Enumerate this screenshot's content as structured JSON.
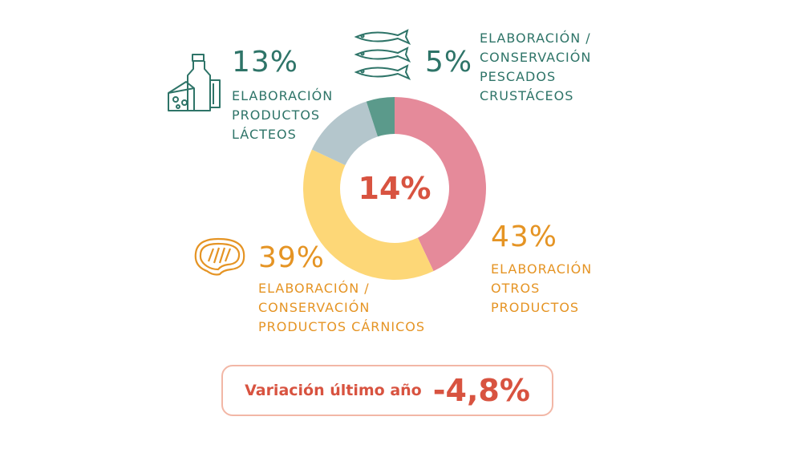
{
  "colors": {
    "teal": "#2e7468",
    "orange": "#e59424",
    "red": "#d85340",
    "pink": "#e58a9a",
    "yellow": "#fdd777",
    "grey": "#b4c6cc",
    "darkteal": "#5b9a8b"
  },
  "chart_data": {
    "type": "pie",
    "donut": true,
    "center_label": "14%",
    "slices": [
      {
        "label": "ELABORACIÓN OTROS PRODUCTOS",
        "value": 43,
        "color": "#e58a9a"
      },
      {
        "label": "ELABORACIÓN / CONSERVACIÓN PRODUCTOS CÁRNICOS",
        "value": 39,
        "color": "#fdd777"
      },
      {
        "label": "ELABORACIÓN PRODUCTOS LÁCTEOS",
        "value": 13,
        "color": "#b4c6cc"
      },
      {
        "label": "ELABORACIÓN / CONSERVACIÓN PESCADOS CRUSTÁCEOS",
        "value": 5,
        "color": "#5b9a8b"
      }
    ]
  },
  "annotations": {
    "lacteos": {
      "pct": "13%",
      "label": "ELABORACIÓN\nPRODUCTOS\nLÁCTEOS",
      "icon": "milk-cheese-icon"
    },
    "pescados": {
      "pct": "5%",
      "label": "ELABORACIÓN /\nCONSERVACIÓN\nPESCADOS\nCRUSTÁCEOS",
      "icon": "fish-icon"
    },
    "otros": {
      "pct": "43%",
      "label": "ELABORACIÓN\nOTROS\nPRODUCTOS"
    },
    "carnicos": {
      "pct": "39%",
      "label": "ELABORACIÓN /\nCONSERVACIÓN\nPRODUCTOS CÁRNICOS",
      "icon": "steak-icon"
    }
  },
  "variation": {
    "label": "Variación último año",
    "value": "-4,8%"
  }
}
